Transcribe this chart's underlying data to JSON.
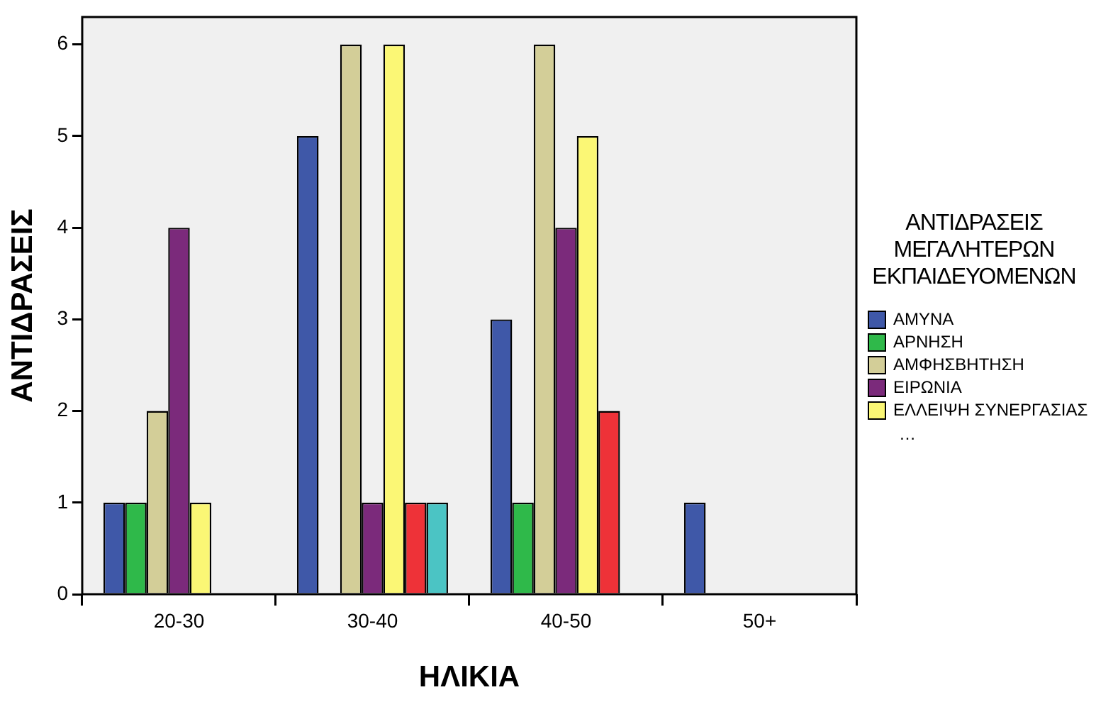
{
  "chart_data": {
    "type": "bar",
    "xlabel": "ΗΛΙΚΙΑ",
    "ylabel": "ΑΝΤΙΔΡΑΣΕΙΣ",
    "legend_title": "ΑΝΤΙΔΡΑΣΕΙΣ ΜΕΓΑΛΗΤΕΡΩΝ ΕΚΠΑΙΔΕΥΟΜΕΝΩΝ",
    "categories": [
      "20-30",
      "30-40",
      "40-50",
      "50+"
    ],
    "series": [
      {
        "name": "ΑΜΥΝΑ",
        "color": "#3f58a8",
        "values": [
          1,
          5,
          3,
          1
        ]
      },
      {
        "name": "ΑΡΝΗΣΗ",
        "color": "#2fb94a",
        "values": [
          1,
          null,
          1,
          null
        ]
      },
      {
        "name": "ΑΜΦΗΣΒΗΤΗΣΗ",
        "color": "#d3ce98",
        "values": [
          2,
          6,
          6,
          null
        ]
      },
      {
        "name": "ΕΙΡΩΝΙΑ",
        "color": "#7b2a7b",
        "values": [
          4,
          1,
          4,
          null
        ]
      },
      {
        "name": "ΕΛΛΕΙΨΗ ΣΥΝΕΡΓΑΣΙΑΣ",
        "color": "#fbf775",
        "values": [
          1,
          6,
          5,
          null
        ]
      },
      {
        "color": "#ee3238",
        "values": [
          null,
          1,
          2,
          null
        ]
      },
      {
        "color": "#4bc4c4",
        "values": [
          null,
          1,
          null,
          null
        ]
      }
    ],
    "ylim": [
      0,
      6.3
    ],
    "yticks": [
      0,
      1,
      2,
      3,
      4,
      5,
      6
    ],
    "grid": false,
    "legend": "right",
    "annotations": [
      "…"
    ]
  }
}
